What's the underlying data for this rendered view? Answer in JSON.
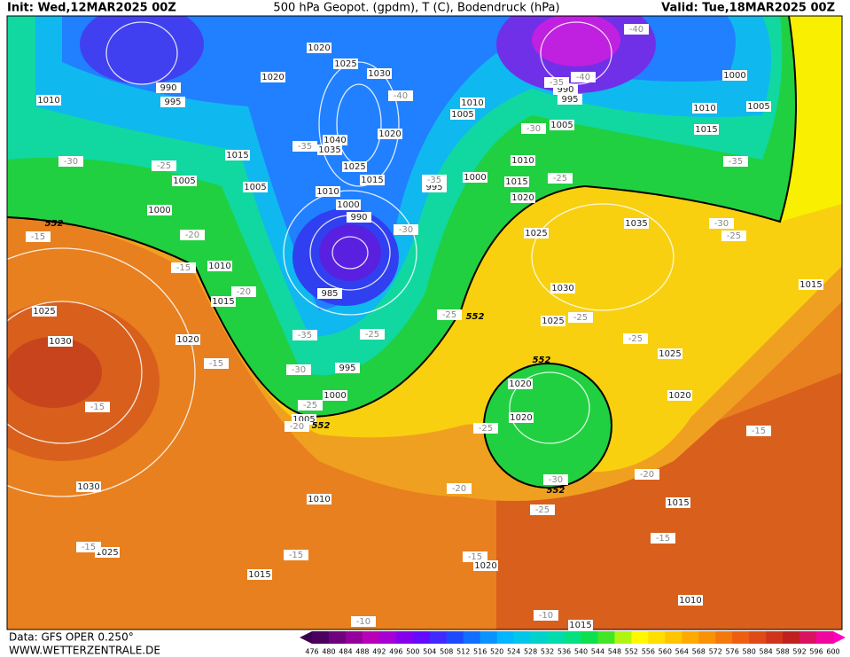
{
  "header": {
    "init": "Init: Wed,12MAR2025 00Z",
    "title": "500 hPa Geopot. (gpdm), T (C), Bodendruck (hPa)",
    "valid": "Valid: Tue,18MAR2025 00Z"
  },
  "footer": {
    "data": "Data: GFS OPER 0.250°",
    "site": "WWW.WETTERZENTRALE.DE"
  },
  "colorbar": {
    "levels": [
      476,
      480,
      484,
      488,
      492,
      496,
      500,
      504,
      508,
      512,
      516,
      520,
      524,
      528,
      532,
      536,
      540,
      544,
      548,
      552,
      556,
      560,
      564,
      568,
      572,
      576,
      580,
      584,
      588,
      592,
      596,
      600
    ]
  },
  "map": {
    "pressure_labels": [
      "1020",
      "1025",
      "1030",
      "990",
      "995",
      "1010",
      "1020",
      "1040",
      "1035",
      "1020",
      "1015",
      "1005",
      "1005",
      "1025",
      "1015",
      "1010",
      "1000",
      "990",
      "1000",
      "1010",
      "1015",
      "985",
      "1025",
      "1030",
      "1020",
      "995",
      "1000",
      "1005",
      "1010",
      "1005",
      "1005",
      "995",
      "1000",
      "1010",
      "1015",
      "1020",
      "1025",
      "1035",
      "1030",
      "1025",
      "1000",
      "1010",
      "1005",
      "1015",
      "1020",
      "1020",
      "1025",
      "1020",
      "1015",
      "1030",
      "1025",
      "1010",
      "1015",
      "1015",
      "1020",
      "1010",
      "1015",
      "990",
      "995"
    ],
    "temperature_labels": [
      "-40",
      "-40",
      "-35",
      "-40",
      "-30",
      "-35",
      "-35",
      "-25",
      "-35",
      "-30",
      "-25",
      "-30",
      "-20",
      "-15",
      "-15",
      "-20",
      "-30",
      "-25",
      "-25",
      "-25",
      "-25",
      "-35",
      "-25",
      "-15",
      "-30",
      "-25",
      "-20",
      "-15",
      "-25",
      "-15",
      "-30",
      "-20",
      "-20",
      "-25",
      "-15",
      "-15",
      "-15",
      "-10",
      "-10",
      "-15"
    ],
    "geopotential_labels": [
      "552",
      "552",
      "552",
      "552",
      "552"
    ]
  }
}
